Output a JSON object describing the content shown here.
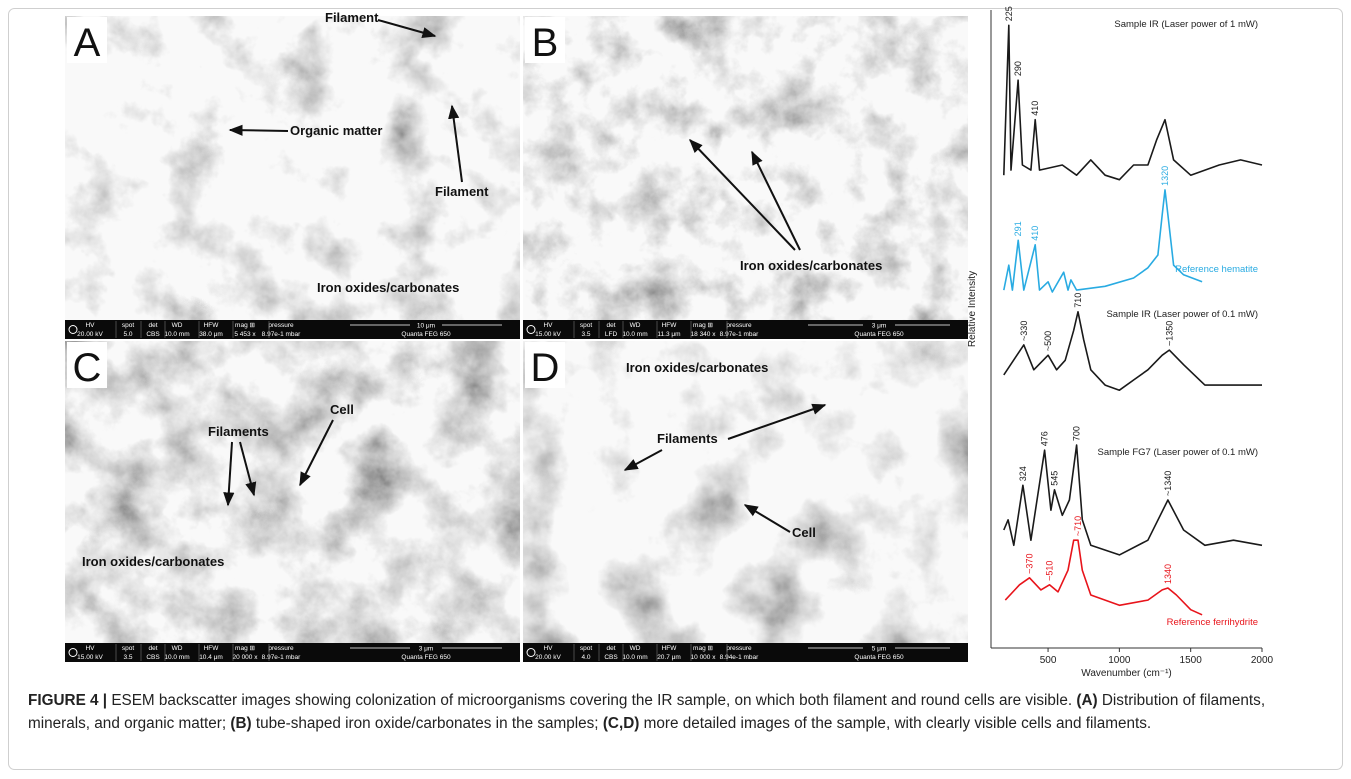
{
  "figure": {
    "panels": [
      {
        "letter": "A",
        "annotations": [
          "Filament",
          "Organic matter",
          "Filament",
          "Iron oxides/carbonates"
        ],
        "info": [
          "20.00 kV",
          "5.0",
          "CBS",
          "10.0 mm",
          "38.0 μm",
          "5 453 x",
          "8.97e-1 mbar"
        ],
        "scale": "10 μm",
        "instrument": "Quanta FEG 650"
      },
      {
        "letter": "B",
        "annotations": [
          "Iron oxides/carbonates"
        ],
        "info": [
          "15.00 kV",
          "3.5",
          "LFD",
          "10.0 mm",
          "11.3 μm",
          "18 340 x",
          "8.97e-1 mbar"
        ],
        "scale": "3 μm",
        "instrument": "Quanta FEG 650"
      },
      {
        "letter": "C",
        "annotations": [
          "Filaments",
          "Cell",
          "Iron oxides/carbonates"
        ],
        "info": [
          "15.00 kV",
          "3.5",
          "CBS",
          "10.0 mm",
          "10.4 μm",
          "20 000 x",
          "8.97e-1 mbar"
        ],
        "scale": "3 μm",
        "instrument": "Quanta FEG 650"
      },
      {
        "letter": "D",
        "annotations": [
          "Iron oxides/carbonates",
          "Filaments",
          "Cell"
        ],
        "info": [
          "20.00 kV",
          "4.0",
          "CBS",
          "10.0 mm",
          "20.7 μm",
          "10 000 x",
          "8.94e-1 mbar"
        ],
        "scale": "5 μm",
        "instrument": "Quanta FEG 650"
      }
    ],
    "info_headers": [
      "HV",
      "spot",
      "det",
      "WD",
      "HFW",
      "mag ⊞",
      "pressure"
    ],
    "spectra": {
      "type": "line",
      "xlabel": "Wavenumber (cm⁻¹)",
      "ylabel": "Relative Intensity",
      "xlim": [
        100,
        2000
      ],
      "xticks": [
        500,
        1000,
        1500,
        2000
      ],
      "ylim": [
        0,
        100
      ],
      "series": [
        {
          "name": "Sample IR (Laser power of 1 mW)",
          "color": "#1a1a1a",
          "x": [
            190,
            225,
            240,
            290,
            320,
            380,
            410,
            440,
            600,
            700,
            800,
            900,
            1000,
            1100,
            1200,
            1260,
            1320,
            1380,
            1500,
            1700,
            1850,
            2000
          ],
          "values": [
            74.1,
            97.6,
            74.9,
            89.0,
            75.7,
            74.9,
            82.8,
            74.9,
            75.7,
            74.1,
            76.5,
            74.1,
            73.4,
            75.7,
            75.7,
            79.6,
            82.8,
            76.5,
            74.1,
            75.7,
            76.5,
            75.7
          ],
          "peaks": [
            {
              "x": 225,
              "label": "225"
            },
            {
              "x": 290,
              "label": "290"
            },
            {
              "x": 410,
              "label": "410"
            }
          ]
        },
        {
          "name": "Reference hematite",
          "color": "#29abe2",
          "x": [
            190,
            225,
            250,
            291,
            330,
            410,
            440,
            500,
            530,
            610,
            640,
            660,
            700,
            900,
            1100,
            1200,
            1270,
            1300,
            1320,
            1340,
            1380,
            1450,
            1580
          ],
          "values": [
            56.1,
            60.0,
            56.1,
            63.9,
            56.1,
            63.2,
            56.1,
            57.4,
            55.8,
            58.9,
            56.1,
            57.7,
            56.1,
            56.7,
            58.0,
            59.6,
            61.6,
            67.9,
            71.8,
            67.9,
            60.0,
            58.5,
            57.4
          ],
          "peaks": [
            {
              "x": 291,
              "label": "291"
            },
            {
              "x": 410,
              "label": "410"
            },
            {
              "x": 1320,
              "label": "1320"
            }
          ]
        },
        {
          "name": "Sample IR (Laser power of 0.1 mW)",
          "color": "#1a1a1a",
          "x": [
            190,
            330,
            400,
            500,
            560,
            620,
            680,
            710,
            750,
            800,
            900,
            1000,
            1100,
            1200,
            1300,
            1350,
            1450,
            1600,
            1800,
            2000
          ],
          "values": [
            42.8,
            47.5,
            43.6,
            45.9,
            43.6,
            45.1,
            49.8,
            52.7,
            48.3,
            43.6,
            41.2,
            40.4,
            42.0,
            43.6,
            45.9,
            46.7,
            44.4,
            41.2,
            41.2,
            41.2
          ],
          "peaks": [
            {
              "x": 330,
              "label": "~330"
            },
            {
              "x": 500,
              "label": "~500"
            },
            {
              "x": 710,
              "label": "710"
            },
            {
              "x": 1350,
              "label": "~1350"
            }
          ]
        },
        {
          "name": "Sample FG7 (Laser power of 0.1 mW)",
          "color": "#1a1a1a",
          "x": [
            190,
            220,
            260,
            324,
            380,
            476,
            520,
            545,
            600,
            650,
            700,
            740,
            800,
            1000,
            1200,
            1340,
            1450,
            1600,
            1800,
            2000
          ],
          "values": [
            18.5,
            20.1,
            16.1,
            25.5,
            16.9,
            31.0,
            21.6,
            24.8,
            20.8,
            23.2,
            31.8,
            20.1,
            16.1,
            14.6,
            16.9,
            23.2,
            18.5,
            16.1,
            16.9,
            16.1
          ],
          "peaks": [
            {
              "x": 324,
              "label": "324"
            },
            {
              "x": 476,
              "label": "476"
            },
            {
              "x": 545,
              "label": "545"
            },
            {
              "x": 700,
              "label": "700"
            },
            {
              "x": 1340,
              "label": "~1340"
            }
          ]
        },
        {
          "name": "Reference ferrihydrite",
          "color": "#e8141b",
          "x": [
            200,
            300,
            370,
            450,
            510,
            570,
            640,
            680,
            710,
            740,
            800,
            1000,
            1200,
            1300,
            1340,
            1400,
            1500,
            1580
          ],
          "values": [
            7.5,
            9.9,
            11.0,
            9.1,
            9.9,
            8.8,
            12.2,
            16.9,
            16.9,
            12.2,
            8.3,
            6.7,
            7.5,
            9.1,
            9.4,
            8.3,
            6.0,
            5.2
          ],
          "peaks": [
            {
              "x": 370,
              "label": "~370"
            },
            {
              "x": 510,
              "label": "~510"
            },
            {
              "x": 710,
              "label": "~710"
            },
            {
              "x": 1340,
              "label": "1340"
            }
          ]
        }
      ]
    }
  },
  "caption": {
    "label": "FIGURE 4 |",
    "segments": [
      {
        "text": " ESEM backscatter images showing colonization of microorganisms covering the IR sample, on which both filament and round cells are visible. "
      },
      {
        "text": "(A)",
        "bold": true
      },
      {
        "text": " Distribution of filaments, minerals, and organic matter; "
      },
      {
        "text": "(B)",
        "bold": true
      },
      {
        "text": " tube-shaped iron oxide/carbonates in the samples; "
      },
      {
        "text": "(C,D)",
        "bold": true
      },
      {
        "text": " more detailed images of the sample, with clearly visible cells and filaments."
      }
    ]
  }
}
